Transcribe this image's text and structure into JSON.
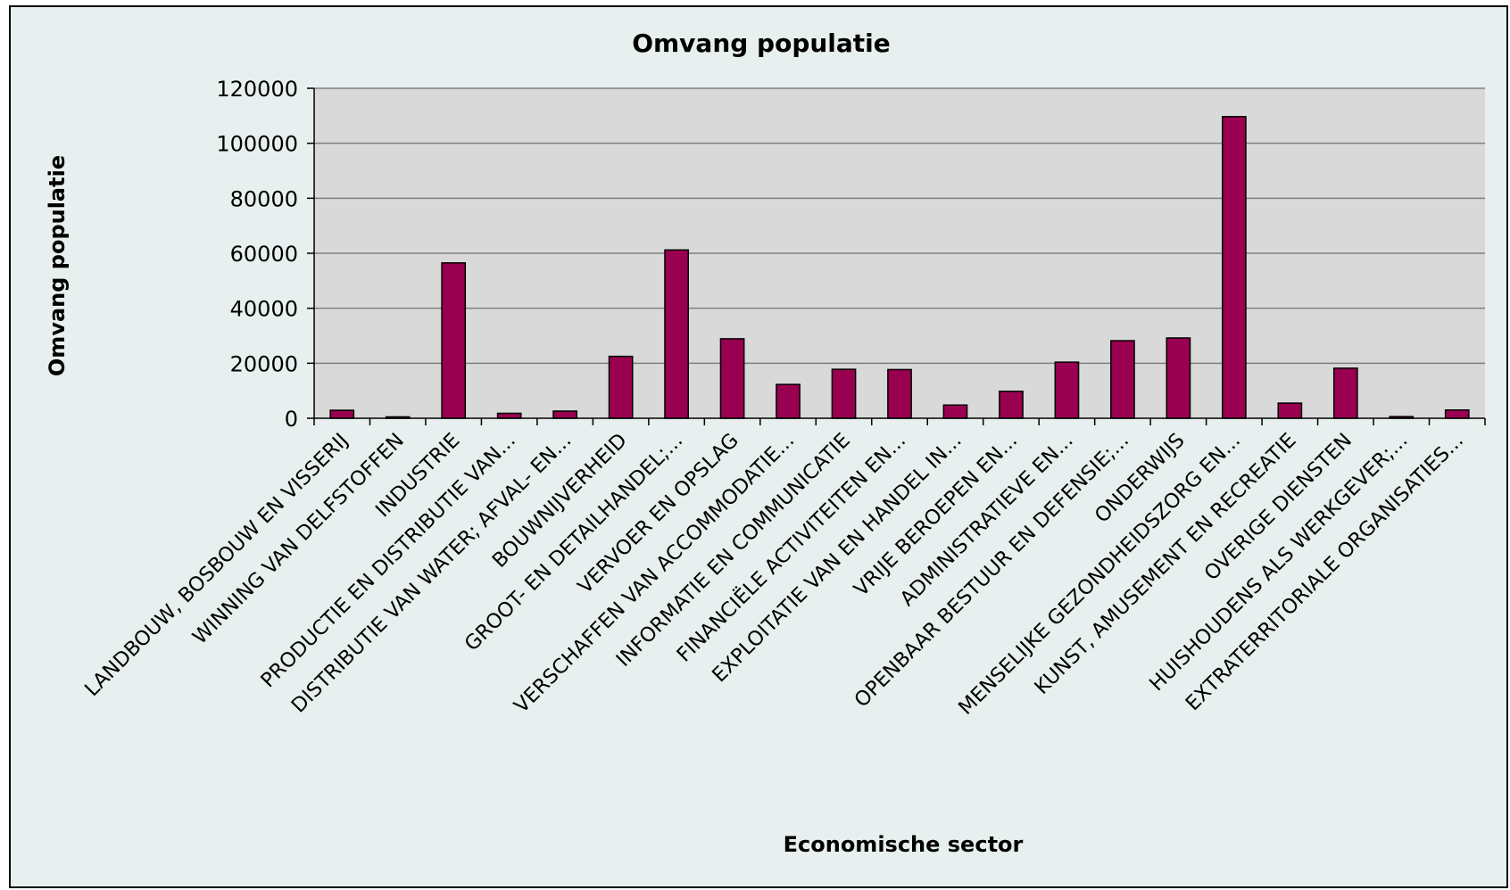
{
  "chart_data": {
    "type": "bar",
    "title": "Omvang populatie",
    "xlabel": "Economische sector",
    "ylabel": "Omvang populatie",
    "ylim": [
      0,
      120000
    ],
    "yticks": [
      "0",
      "20000",
      "40000",
      "60000",
      "80000",
      "100000",
      "120000"
    ],
    "grid": true,
    "legend": "none",
    "categories": [
      "LANDBOUW, BOSBOUW EN VISSERIJ",
      "WINNING VAN DELFSTOFFEN",
      "INDUSTRIE",
      "PRODUCTIE EN DISTRIBUTIE VAN...",
      "DISTRIBUTIE VAN WATER; AFVAL- EN...",
      "BOUWNIJVERHEID",
      "GROOT- EN DETAILHANDEL;...",
      "VERVOER EN OPSLAG",
      "VERSCHAFFEN VAN ACCOMMODATIE...",
      "INFORMATIE EN COMMUNICATIE",
      "FINANCIËLE ACTIVITEITEN EN...",
      "EXPLOITATIE VAN EN HANDEL IN...",
      "VRIJE BEROEPEN EN...",
      "ADMINISTRATIEVE EN...",
      "OPENBAAR BESTUUR EN DEFENSIE;...",
      "ONDERWIJS",
      "MENSELIJKE GEZONDHEIDSZORG EN...",
      "KUNST, AMUSEMENT EN RECREATIE",
      "OVERIGE DIENSTEN",
      "HUISHOUDENS ALS WERKGEVER;...",
      "EXTRATERRITORIALE ORGANISATIES..."
    ],
    "values": [
      2900,
      500,
      56500,
      1800,
      2600,
      22500,
      61200,
      28900,
      12300,
      17800,
      17700,
      4800,
      9800,
      20400,
      28200,
      29200,
      109700,
      5500,
      18200,
      600,
      3000
    ],
    "colors": {
      "bar": "#990050",
      "bar_stroke": "#000000",
      "plot_bg": "#d9d9d9",
      "frame_bg": "#e7efef",
      "grid": "#808080"
    }
  }
}
